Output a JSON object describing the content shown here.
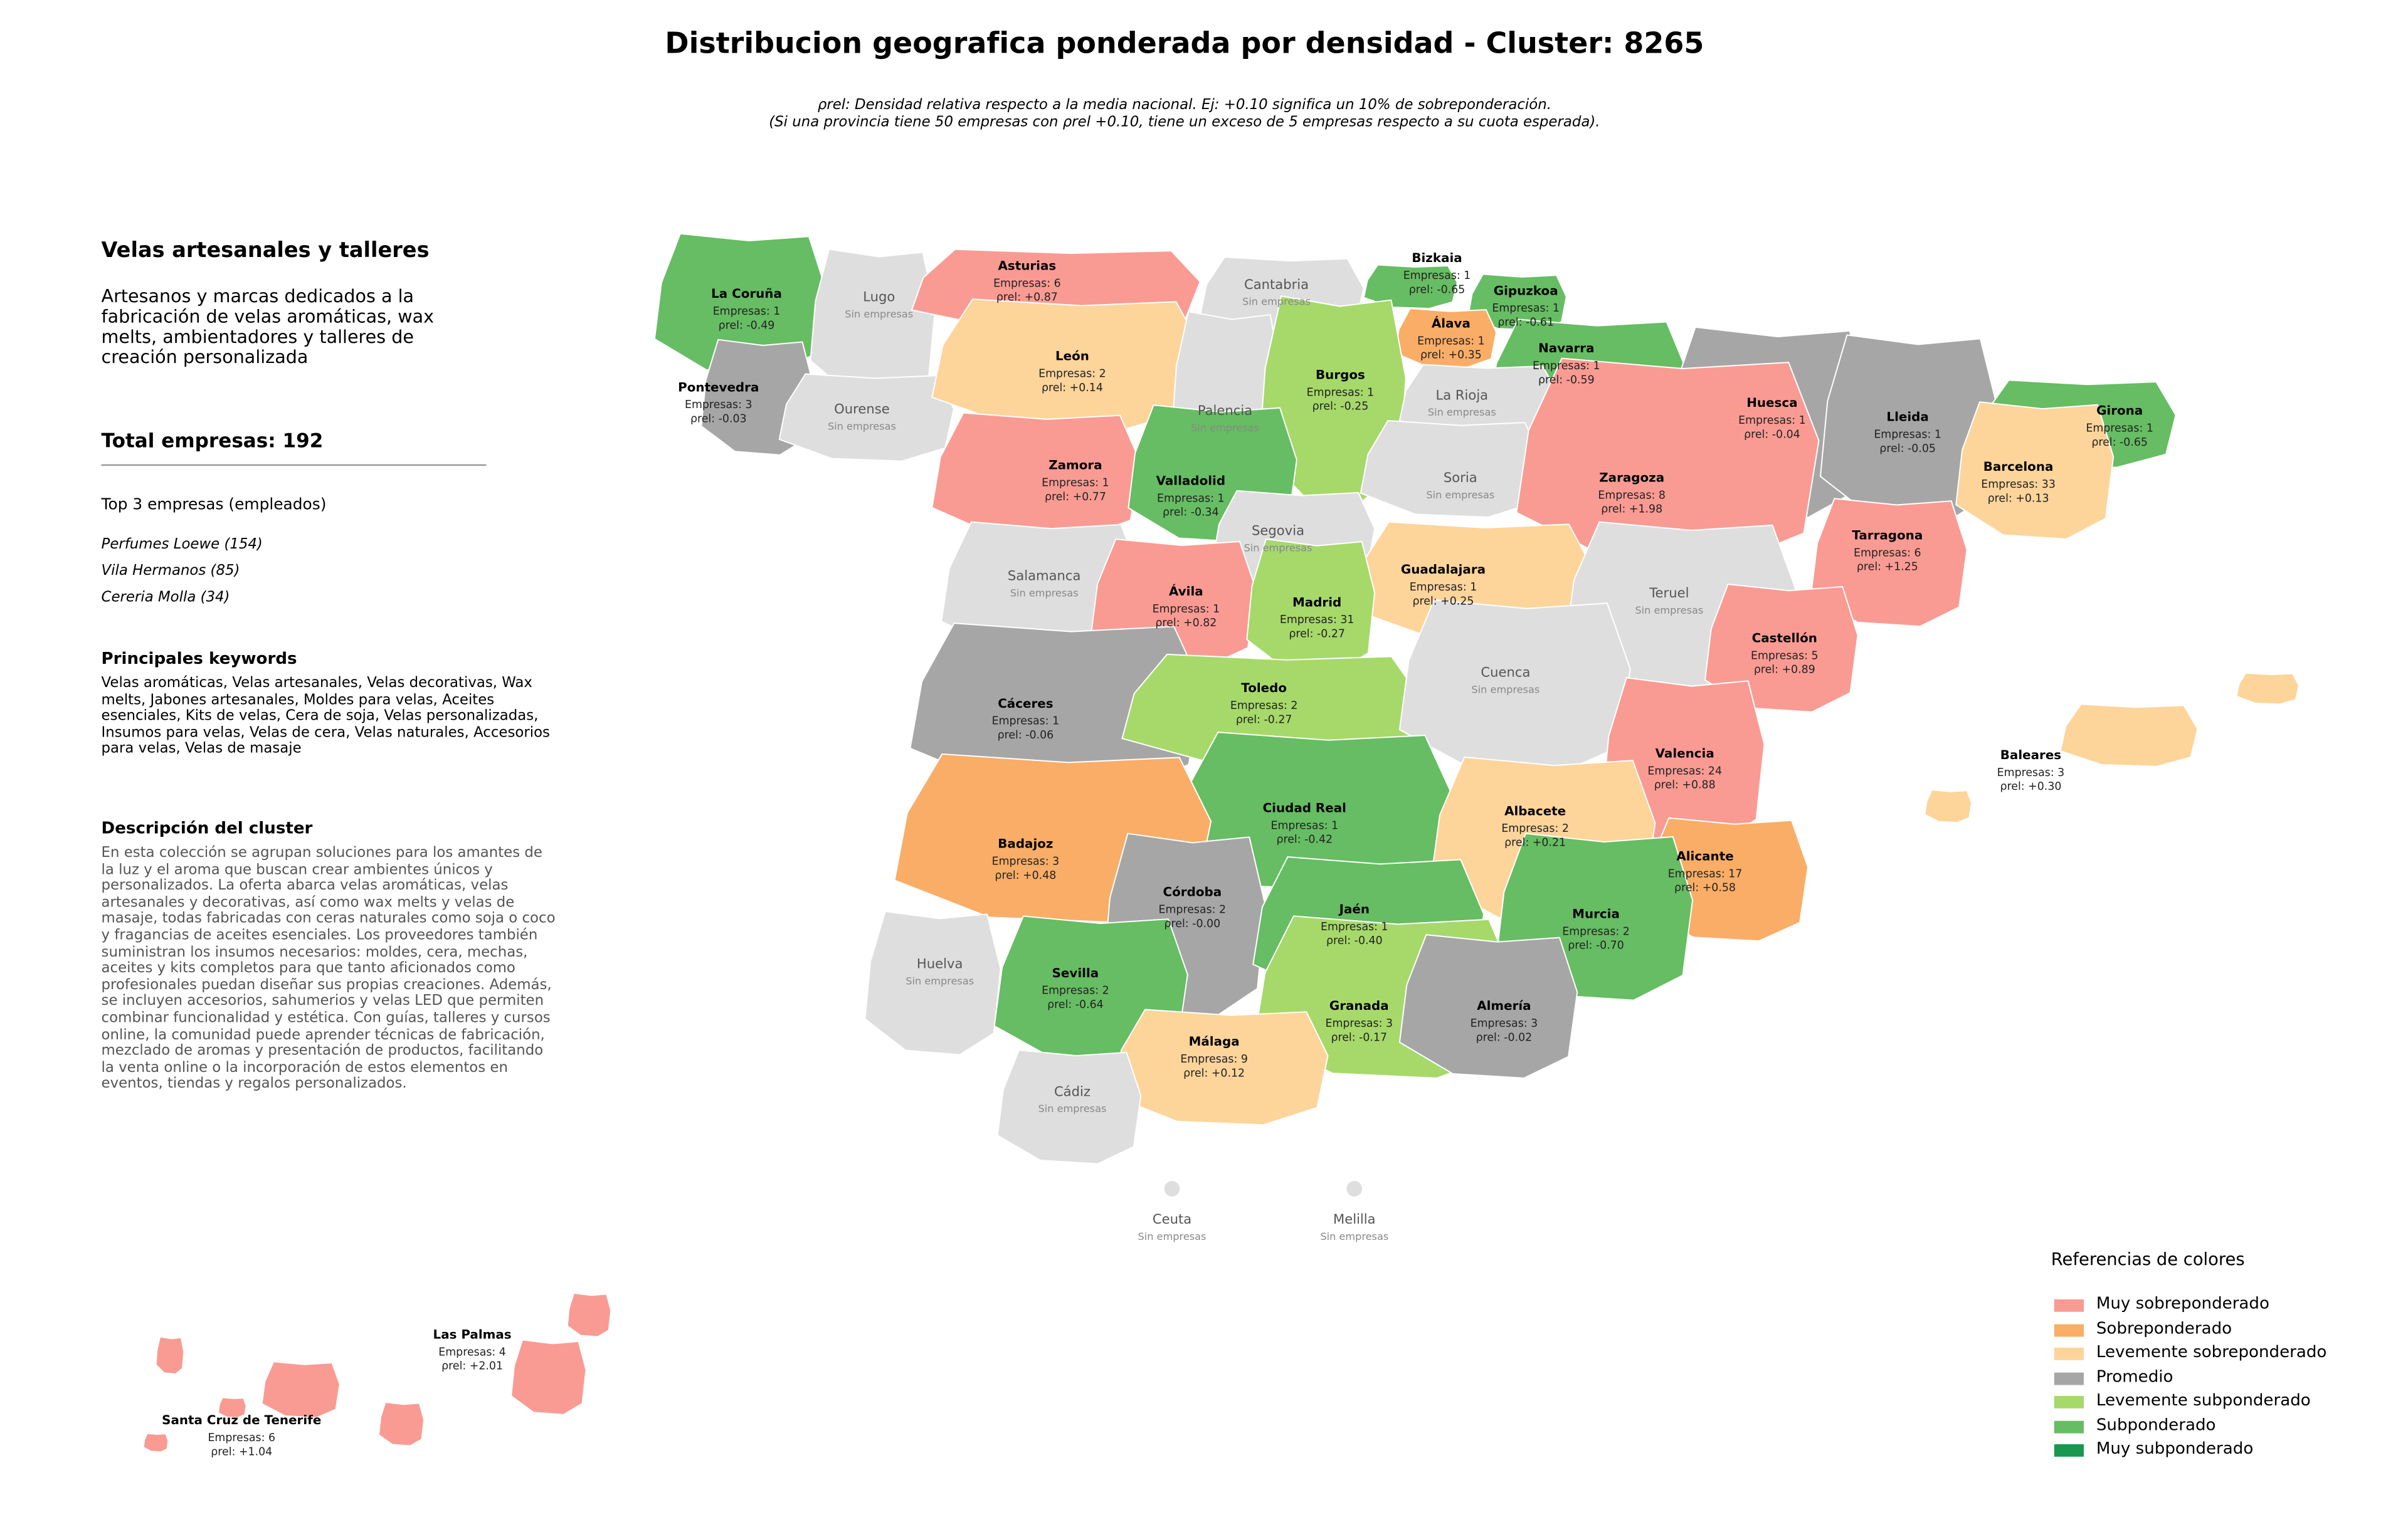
{
  "title": "Distribucion geografica ponderada por densidad - Cluster: 8265",
  "subtitle_lines": [
    "ρrel: Densidad relativa respecto a la media nacional. Ej: +0.10 significa un 10% de sobreponderación.",
    "(Si una provincia tiene 50 empresas con ρrel +0.10, tiene un exceso de 5 empresas respecto a su cuota esperada)."
  ],
  "sidebar": {
    "cluster_name": "Velas artesanales y talleres",
    "cluster_summary": "Artesanos y marcas dedicados a la fabricación de velas aromáticas, wax melts, ambientadores y talleres de creación personalizada",
    "total": "Total empresas: 192",
    "top_title": "Top 3 empresas (empleados)",
    "top_companies": [
      "Perfumes Loewe (154)",
      "Vila Hermanos (85)",
      "Cereria Molla (34)"
    ],
    "keywords_title": "Principales keywords",
    "keywords": "Velas aromáticas, Velas artesanales, Velas decorativas, Wax melts, Jabones artesanales, Moldes para velas, Aceites esenciales, Kits de velas, Cera de soja, Velas personalizadas, Insumos para velas, Velas de cera, Velas naturales, Accesorios para velas, Velas de masaje",
    "description_title": "Descripción del cluster",
    "description": "En esta colección se agrupan soluciones para los amantes de la luz y el aroma que buscan crear ambientes únicos y personalizados. La oferta abarca velas aromáticas, velas artesanales y decorativas, así como wax melts y velas de masaje, todas fabricadas con ceras naturales como soja o coco y fragancias de aceites esenciales. Los proveedores también suministran los insumos necesarios: moldes, cera, mechas, aceites y kits completos para que tanto aficionados como profesionales puedan diseñar sus propias creaciones. Además, se incluyen accesorios, sahumerios y velas LED que permiten combinar funcionalidad y estética. Con guías, talleres y cursos online, la comunidad puede aprender técnicas de fabricación, mezclado de aromas y presentación de productos, facilitando la venta online o la incorporación de estos elementos en eventos, tiendas y regalos personalizados."
  },
  "provinces": [
    {
      "name": "La Coruña",
      "color": "#66bd63",
      "stats": [
        "Empresas: 1",
        "ρrel: -0.49"
      ]
    },
    {
      "name": "Lugo",
      "color": "#dedede",
      "stats": [
        "Sin empresas"
      ]
    },
    {
      "name": "Asturias",
      "color": "#f99b93",
      "stats": [
        "Empresas: 6",
        "ρrel: +0.87"
      ]
    },
    {
      "name": "Cantabria",
      "color": "#dedede",
      "stats": [
        "Sin empresas"
      ]
    },
    {
      "name": "Bizkaia",
      "color": "#66bd63",
      "stats": [
        "Empresas: 1",
        "ρrel: -0.65"
      ]
    },
    {
      "name": "Gipuzkoa",
      "color": "#66bd63",
      "stats": [
        "Empresas: 1",
        "ρrel: -0.61"
      ]
    },
    {
      "name": "Álava",
      "color": "#f9ad66",
      "stats": [
        "Empresas: 1",
        "ρrel: +0.35"
      ]
    },
    {
      "name": "Navarra",
      "color": "#66bd63",
      "stats": [
        "Empresas: 1",
        "ρrel: -0.59"
      ]
    },
    {
      "name": "Pontevedra",
      "color": "#a6a6a6",
      "stats": [
        "Empresas: 3",
        "ρrel: -0.03"
      ]
    },
    {
      "name": "Ourense",
      "color": "#dedede",
      "stats": [
        "Sin empresas"
      ]
    },
    {
      "name": "León",
      "color": "#fdd49a",
      "stats": [
        "Empresas: 2",
        "ρrel: +0.14"
      ]
    },
    {
      "name": "Palencia",
      "color": "#dedede",
      "stats": [
        "Sin empresas"
      ]
    },
    {
      "name": "Burgos",
      "color": "#a6d96a",
      "stats": [
        "Empresas: 1",
        "ρrel: -0.25"
      ]
    },
    {
      "name": "La Rioja",
      "color": "#dedede",
      "stats": [
        "Sin empresas"
      ]
    },
    {
      "name": "Huesca",
      "color": "#a6a6a6",
      "stats": [
        "Empresas: 1",
        "ρrel: -0.04"
      ]
    },
    {
      "name": "Lleida",
      "color": "#a6a6a6",
      "stats": [
        "Empresas: 1",
        "ρrel: -0.05"
      ]
    },
    {
      "name": "Girona",
      "color": "#66bd63",
      "stats": [
        "Empresas: 1",
        "ρrel: -0.65"
      ]
    },
    {
      "name": "Barcelona",
      "color": "#fdd49a",
      "stats": [
        "Empresas: 33",
        "ρrel: +0.13"
      ]
    },
    {
      "name": "Zamora",
      "color": "#f99b93",
      "stats": [
        "Empresas: 1",
        "ρrel: +0.77"
      ]
    },
    {
      "name": "Valladolid",
      "color": "#66bd63",
      "stats": [
        "Empresas: 1",
        "ρrel: -0.34"
      ]
    },
    {
      "name": "Soria",
      "color": "#dedede",
      "stats": [
        "Sin empresas"
      ]
    },
    {
      "name": "Zaragoza",
      "color": "#f99b93",
      "stats": [
        "Empresas: 8",
        "ρrel: +1.98"
      ]
    },
    {
      "name": "Segovia",
      "color": "#dedede",
      "stats": [
        "Sin empresas"
      ]
    },
    {
      "name": "Tarragona",
      "color": "#f99b93",
      "stats": [
        "Empresas: 6",
        "ρrel: +1.25"
      ]
    },
    {
      "name": "Salamanca",
      "color": "#dedede",
      "stats": [
        "Sin empresas"
      ]
    },
    {
      "name": "Guadalajara",
      "color": "#fdd49a",
      "stats": [
        "Empresas: 1",
        "ρrel: +0.25"
      ]
    },
    {
      "name": "Teruel",
      "color": "#dedede",
      "stats": [
        "Sin empresas"
      ]
    },
    {
      "name": "Ávila",
      "color": "#f99b93",
      "stats": [
        "Empresas: 1",
        "ρrel: +0.82"
      ]
    },
    {
      "name": "Madrid",
      "color": "#a6d96a",
      "stats": [
        "Empresas: 31",
        "ρrel: -0.27"
      ]
    },
    {
      "name": "Castellón",
      "color": "#f99b93",
      "stats": [
        "Empresas: 5",
        "ρrel: +0.89"
      ]
    },
    {
      "name": "Cáceres",
      "color": "#a6a6a6",
      "stats": [
        "Empresas: 1",
        "ρrel: -0.06"
      ]
    },
    {
      "name": "Toledo",
      "color": "#a6d96a",
      "stats": [
        "Empresas: 2",
        "ρrel: -0.27"
      ]
    },
    {
      "name": "Cuenca",
      "color": "#dedede",
      "stats": [
        "Sin empresas"
      ]
    },
    {
      "name": "Valencia",
      "color": "#f99b93",
      "stats": [
        "Empresas: 24",
        "ρrel: +0.88"
      ]
    },
    {
      "name": "Baleares",
      "color": "#fdd49a",
      "stats": [
        "Empresas: 3",
        "ρrel: +0.30"
      ]
    },
    {
      "name": "Ciudad Real",
      "color": "#66bd63",
      "stats": [
        "Empresas: 1",
        "ρrel: -0.42"
      ]
    },
    {
      "name": "Albacete",
      "color": "#fdd49a",
      "stats": [
        "Empresas: 2",
        "ρrel: +0.21"
      ]
    },
    {
      "name": "Badajoz",
      "color": "#f9ad66",
      "stats": [
        "Empresas: 3",
        "ρrel: +0.48"
      ]
    },
    {
      "name": "Alicante",
      "color": "#f9ad66",
      "stats": [
        "Empresas: 17",
        "ρrel: +0.58"
      ]
    },
    {
      "name": "Córdoba",
      "color": "#a6a6a6",
      "stats": [
        "Empresas: 2",
        "ρrel: -0.00"
      ]
    },
    {
      "name": "Jaén",
      "color": "#66bd63",
      "stats": [
        "Empresas: 1",
        "ρrel: -0.40"
      ]
    },
    {
      "name": "Murcia",
      "color": "#66bd63",
      "stats": [
        "Empresas: 2",
        "ρrel: -0.70"
      ]
    },
    {
      "name": "Huelva",
      "color": "#dedede",
      "stats": [
        "Sin empresas"
      ]
    },
    {
      "name": "Sevilla",
      "color": "#66bd63",
      "stats": [
        "Empresas: 2",
        "ρrel: -0.64"
      ]
    },
    {
      "name": "Granada",
      "color": "#a6d96a",
      "stats": [
        "Empresas: 3",
        "ρrel: -0.17"
      ]
    },
    {
      "name": "Almería",
      "color": "#a6a6a6",
      "stats": [
        "Empresas: 3",
        "ρrel: -0.02"
      ]
    },
    {
      "name": "Málaga",
      "color": "#fdd49a",
      "stats": [
        "Empresas: 9",
        "ρrel: +0.12"
      ]
    },
    {
      "name": "Cádiz",
      "color": "#dedede",
      "stats": [
        "Sin empresas"
      ]
    },
    {
      "name": "Ceuta",
      "color": "#dedede",
      "stats": [
        "Sin empresas"
      ]
    },
    {
      "name": "Melilla",
      "color": "#dedede",
      "stats": [
        "Sin empresas"
      ]
    },
    {
      "name": "Las Palmas",
      "color": "#f99b93",
      "stats": [
        "Empresas: 4",
        "ρrel: +2.01"
      ]
    },
    {
      "name": "Santa Cruz de Tenerife",
      "color": "#f99b93",
      "stats": [
        "Empresas: 6",
        "ρrel: +1.04"
      ]
    }
  ],
  "legend": {
    "title": "Referencias de colores",
    "items": [
      {
        "label": "Muy sobreponderado",
        "color": "#f99b93"
      },
      {
        "label": "Sobreponderado",
        "color": "#f9ad66"
      },
      {
        "label": "Levemente sobreponderado",
        "color": "#fdd49a"
      },
      {
        "label": "Promedio",
        "color": "#a6a6a6"
      },
      {
        "label": "Levemente subponderado",
        "color": "#a6d96a"
      },
      {
        "label": "Subponderado",
        "color": "#66bd63"
      },
      {
        "label": "Muy subponderado",
        "color": "#1a9850"
      }
    ]
  }
}
